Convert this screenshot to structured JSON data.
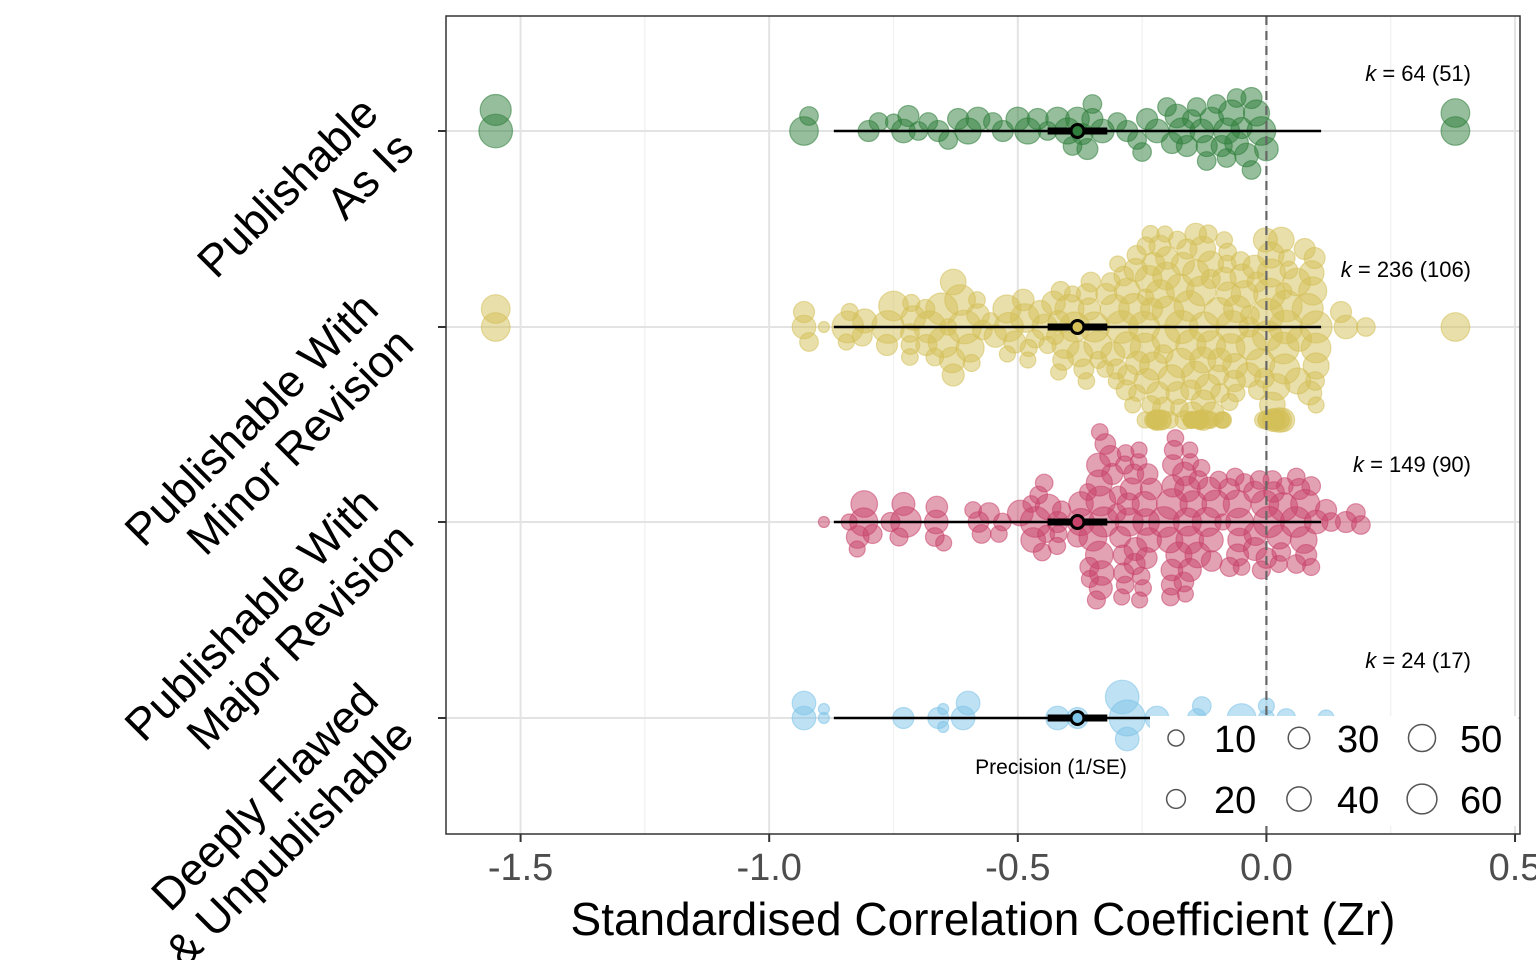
{
  "chart_data": {
    "type": "scatter",
    "subtype": "orchard plot (bubble beeswarm with mean and intervals)",
    "xlabel": "Standardised Correlation Coefficient (Zr)",
    "ylabel": "",
    "xlim": [
      -1.65,
      0.51
    ],
    "x_ticks": [
      -1.5,
      -1.0,
      -0.5,
      0.0,
      0.5
    ],
    "x_tick_labels": [
      "-1.5",
      "-1.0",
      "-0.5",
      "0.0",
      "0.5"
    ],
    "reference_line_x": 0.0,
    "grid": true,
    "categories": [
      "Publishable As Is",
      "Publishable With Minor Revision",
      "Publishable With Major Revision",
      "Deeply Flawed & Unpublishable"
    ],
    "category_label_lines": [
      [
        "Publishable",
        "As Is"
      ],
      [
        "Publishable With",
        "Minor Revision"
      ],
      [
        "Publishable With",
        "Major Revision"
      ],
      [
        "Deeply Flawed",
        "& Unpublishable"
      ]
    ],
    "summary": {
      "mean": -0.38,
      "confidence_interval": [
        -0.44,
        -0.32
      ],
      "prediction_interval": [
        -0.87,
        0.11
      ]
    },
    "series": [
      {
        "name": "Publishable As Is",
        "color": "#2e7d3a",
        "k_label": "k",
        "k_text": " = 64 (51)",
        "points": [
          [
            -1.55,
            55
          ],
          [
            -1.55,
            50
          ],
          [
            -0.93,
            45
          ],
          [
            -0.92,
            25
          ],
          [
            -0.8,
            30
          ],
          [
            -0.78,
            25
          ],
          [
            -0.75,
            20
          ],
          [
            -0.73,
            35
          ],
          [
            -0.72,
            30
          ],
          [
            -0.7,
            25
          ],
          [
            -0.68,
            25
          ],
          [
            -0.66,
            30
          ],
          [
            -0.64,
            25
          ],
          [
            -0.62,
            30
          ],
          [
            -0.6,
            40
          ],
          [
            -0.58,
            35
          ],
          [
            -0.55,
            25
          ],
          [
            -0.53,
            30
          ],
          [
            -0.5,
            35
          ],
          [
            -0.48,
            40
          ],
          [
            -0.46,
            30
          ],
          [
            -0.44,
            25
          ],
          [
            -0.42,
            35
          ],
          [
            -0.4,
            40
          ],
          [
            -0.39,
            25
          ],
          [
            -0.38,
            35
          ],
          [
            -0.37,
            30
          ],
          [
            -0.36,
            30
          ],
          [
            -0.35,
            25
          ],
          [
            -0.33,
            35
          ],
          [
            -0.3,
            25
          ],
          [
            -0.28,
            30
          ],
          [
            -0.26,
            25
          ],
          [
            -0.24,
            30
          ],
          [
            -0.22,
            35
          ],
          [
            -0.2,
            25
          ],
          [
            -0.18,
            35
          ],
          [
            -0.17,
            40
          ],
          [
            -0.16,
            30
          ],
          [
            -0.15,
            25
          ],
          [
            -0.14,
            25
          ],
          [
            -0.13,
            35
          ],
          [
            -0.12,
            30
          ],
          [
            -0.11,
            35
          ],
          [
            -0.1,
            25
          ],
          [
            -0.09,
            30
          ],
          [
            -0.08,
            40
          ],
          [
            -0.07,
            40
          ],
          [
            -0.06,
            35
          ],
          [
            -0.05,
            30
          ],
          [
            -0.04,
            35
          ],
          [
            -0.03,
            25
          ],
          [
            -0.02,
            40
          ],
          [
            -0.01,
            45
          ],
          [
            0.0,
            35
          ],
          [
            -0.03,
            30
          ],
          [
            -0.06,
            25
          ],
          [
            -0.08,
            25
          ],
          [
            -0.12,
            25
          ],
          [
            -0.19,
            30
          ],
          [
            -0.25,
            25
          ],
          [
            -0.35,
            30
          ],
          [
            0.38,
            45
          ],
          [
            0.38,
            45
          ]
        ]
      },
      {
        "name": "Publishable With Minor Revision",
        "color": "#d4bf58",
        "k_label": "k",
        "k_text": " = 236 (106)",
        "points": []
      },
      {
        "name": "Publishable With Major Revision",
        "color": "#c8436a",
        "k_label": "k",
        "k_text": " = 149 (90)",
        "points": []
      },
      {
        "name": "Deeply Flawed & Unpublishable",
        "color": "#7ec3e8",
        "k_label": "k",
        "k_text": " = 24 (17)",
        "points": [
          [
            -0.89,
            10
          ],
          [
            -0.89,
            10
          ],
          [
            -0.93,
            35
          ],
          [
            -0.93,
            35
          ],
          [
            -0.73,
            30
          ],
          [
            -0.65,
            10
          ],
          [
            -0.65,
            10
          ],
          [
            -0.66,
            30
          ],
          [
            -0.61,
            35
          ],
          [
            -0.6,
            35
          ],
          [
            -0.42,
            35
          ],
          [
            -0.38,
            30
          ],
          [
            -0.29,
            55
          ],
          [
            -0.28,
            35
          ],
          [
            -0.28,
            60
          ],
          [
            -0.22,
            35
          ],
          [
            -0.14,
            25
          ],
          [
            -0.13,
            25
          ],
          [
            -0.05,
            45
          ],
          [
            0.0,
            20
          ],
          [
            0.0,
            20
          ],
          [
            0.04,
            25
          ],
          [
            0.12,
            20
          ],
          [
            -0.15,
            25
          ]
        ]
      }
    ],
    "legend": {
      "title": "Precision (1/SE)",
      "entries": [
        "10",
        "20",
        "30",
        "40",
        "50",
        "60"
      ],
      "placement": "bottom-right"
    }
  }
}
